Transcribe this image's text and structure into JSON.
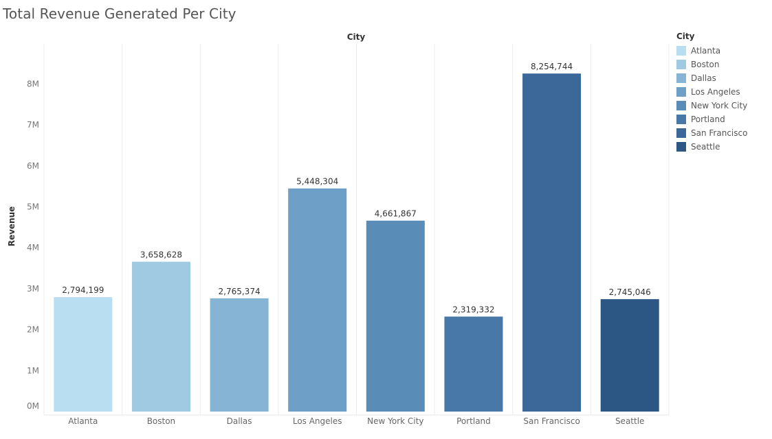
{
  "chart_data": {
    "type": "bar",
    "title": "Total Revenue Generated Per City",
    "column_header": "City",
    "xlabel": "",
    "ylabel": "Revenue",
    "categories": [
      "Atlanta",
      "Boston",
      "Dallas",
      "Los Angeles",
      "New York City",
      "Portland",
      "San Francisco",
      "Seattle"
    ],
    "values": [
      2794199,
      3658628,
      2765374,
      5448304,
      4661867,
      2319332,
      8254744,
      2745046
    ],
    "data_labels": [
      "2,794,199",
      "3,658,628",
      "2,765,374",
      "5,448,304",
      "4,661,867",
      "2,319,332",
      "8,254,744",
      "2,745,046"
    ],
    "ylim": [
      0,
      8500000
    ],
    "yticks": [
      0,
      1000000,
      2000000,
      3000000,
      4000000,
      5000000,
      6000000,
      7000000,
      8000000
    ],
    "ytick_labels": [
      "0M",
      "1M",
      "2M",
      "3M",
      "4M",
      "5M",
      "6M",
      "7M",
      "8M"
    ],
    "colors": [
      "#b9ddf1",
      "#9fcae1",
      "#85b4d5",
      "#6e9fc7",
      "#5a8cb8",
      "#4878a8",
      "#3b6898",
      "#2c5784"
    ],
    "grid": false,
    "legend": {
      "title": "City",
      "position": "right",
      "entries": [
        "Atlanta",
        "Boston",
        "Dallas",
        "Los Angeles",
        "New York City",
        "Portland",
        "San Francisco",
        "Seattle"
      ]
    }
  }
}
